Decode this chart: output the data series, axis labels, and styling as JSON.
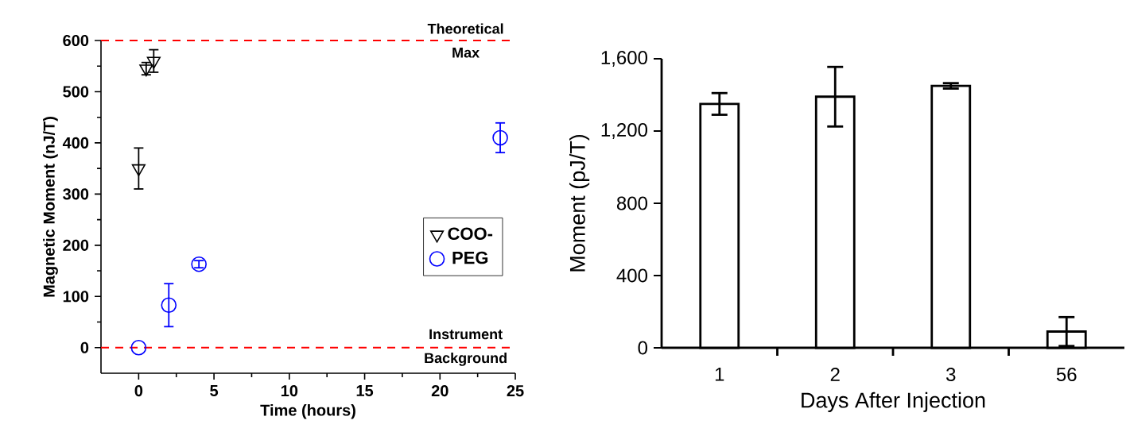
{
  "chart_data": [
    {
      "type": "scatter",
      "xlabel": "Time (hours)",
      "ylabel": "Magnetic Moment (nJ/T)",
      "xlim": [
        -2.5,
        25
      ],
      "ylim": [
        -50,
        600
      ],
      "xticks": [
        0,
        5,
        10,
        15,
        20,
        25
      ],
      "yticks": [
        0,
        100,
        200,
        300,
        400,
        500,
        600
      ],
      "legend": "right",
      "series": [
        {
          "name": "COO-",
          "color": "#000000",
          "marker": "triangle",
          "x": [
            0,
            0.5,
            1
          ],
          "values": [
            350,
            545,
            560
          ],
          "errors": [
            40,
            12,
            22
          ]
        },
        {
          "name": "PEG",
          "color": "#0000ff",
          "marker": "circle",
          "x": [
            0,
            2,
            4,
            24
          ],
          "values": [
            0,
            83,
            163,
            410
          ],
          "errors": [
            null,
            42,
            7,
            29
          ]
        }
      ],
      "ref_lines": [
        {
          "axis": "y",
          "value": 600,
          "label": "Theoretical Max",
          "color": "#ff0000",
          "line_style": "dashed"
        },
        {
          "axis": "y",
          "value": 0,
          "label": "Instrument Background",
          "color": "#ff0000",
          "line_style": "dashed"
        }
      ]
    },
    {
      "type": "bar",
      "xlabel": "Days After Injection",
      "ylabel": "Moment (pJ/T)",
      "categories": [
        "1",
        "2",
        "3",
        "56"
      ],
      "values": [
        1350,
        1390,
        1450,
        90
      ],
      "errors": [
        60,
        165,
        15,
        80
      ],
      "color": "#ffffff",
      "ylim": [
        0,
        1600
      ],
      "yticks": [
        0,
        400,
        800,
        {
          "value": 1200,
          "label": "1,200"
        },
        {
          "value": 1600,
          "label": "1,600"
        }
      ]
    }
  ]
}
